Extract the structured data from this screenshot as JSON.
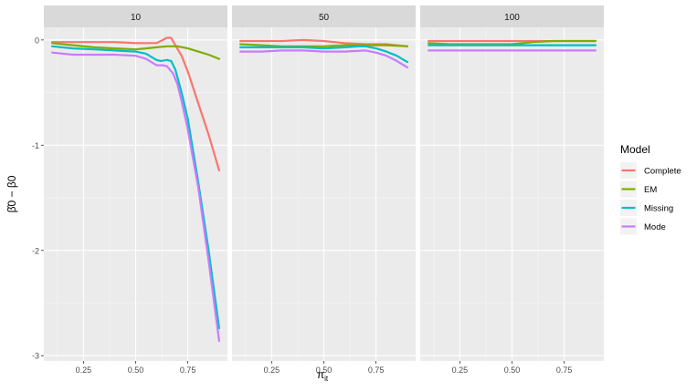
{
  "chart_data": {
    "type": "line",
    "facet_labels": [
      "10",
      "50",
      "100"
    ],
    "xlabel_base": "π",
    "xlabel_sub": "it",
    "ylabel": "β̂0 − β0",
    "x_ticks": [
      0.25,
      0.5,
      0.75
    ],
    "x_tick_labels": [
      "0.25",
      "0.50",
      "0.75"
    ],
    "y_ticks": [
      0,
      -1,
      -2,
      -3
    ],
    "y_tick_labels": [
      "0",
      "-1",
      "-2",
      "-3"
    ],
    "xlim": [
      0.06,
      0.94
    ],
    "ylim": [
      -3.05,
      0.12
    ],
    "grid": true,
    "legend": {
      "title": "Model",
      "position": "right",
      "entries": [
        "Complete",
        "EM",
        "Missing",
        "Mode"
      ]
    },
    "colors": {
      "Complete": "#F8766D",
      "EM": "#7CAE00",
      "Missing": "#00BFC4",
      "Mode": "#C77CFF"
    },
    "facets": [
      {
        "label": "10",
        "series": [
          {
            "name": "Complete",
            "x": [
              0.1,
              0.2,
              0.3,
              0.4,
              0.5,
              0.55,
              0.6,
              0.63,
              0.65,
              0.67,
              0.69,
              0.72,
              0.75,
              0.8,
              0.85,
              0.9
            ],
            "y": [
              -0.02,
              -0.02,
              -0.02,
              -0.02,
              -0.03,
              -0.03,
              -0.03,
              0.0,
              0.02,
              0.02,
              -0.05,
              -0.15,
              -0.3,
              -0.6,
              -0.9,
              -1.24
            ]
          },
          {
            "name": "EM",
            "x": [
              0.1,
              0.2,
              0.3,
              0.4,
              0.5,
              0.55,
              0.6,
              0.65,
              0.7,
              0.75,
              0.8,
              0.85,
              0.9
            ],
            "y": [
              -0.03,
              -0.05,
              -0.07,
              -0.08,
              -0.09,
              -0.08,
              -0.07,
              -0.06,
              -0.06,
              -0.08,
              -0.11,
              -0.14,
              -0.18
            ]
          },
          {
            "name": "Missing",
            "x": [
              0.1,
              0.2,
              0.3,
              0.4,
              0.5,
              0.55,
              0.6,
              0.62,
              0.65,
              0.67,
              0.69,
              0.72,
              0.75,
              0.8,
              0.85,
              0.9
            ],
            "y": [
              -0.06,
              -0.08,
              -0.09,
              -0.1,
              -0.11,
              -0.13,
              -0.19,
              -0.2,
              -0.19,
              -0.2,
              -0.28,
              -0.5,
              -0.75,
              -1.35,
              -2.0,
              -2.74
            ]
          },
          {
            "name": "Mode",
            "x": [
              0.1,
              0.2,
              0.3,
              0.4,
              0.5,
              0.55,
              0.6,
              0.63,
              0.65,
              0.68,
              0.7,
              0.72,
              0.75,
              0.8,
              0.85,
              0.9
            ],
            "y": [
              -0.12,
              -0.14,
              -0.14,
              -0.14,
              -0.15,
              -0.18,
              -0.24,
              -0.24,
              -0.25,
              -0.32,
              -0.42,
              -0.58,
              -0.85,
              -1.4,
              -2.1,
              -2.86
            ]
          }
        ]
      },
      {
        "label": "50",
        "series": [
          {
            "name": "Complete",
            "x": [
              0.1,
              0.2,
              0.3,
              0.4,
              0.5,
              0.6,
              0.7,
              0.8,
              0.9
            ],
            "y": [
              -0.01,
              -0.01,
              -0.01,
              0.0,
              -0.01,
              -0.03,
              -0.04,
              -0.04,
              -0.06
            ]
          },
          {
            "name": "EM",
            "x": [
              0.1,
              0.2,
              0.3,
              0.4,
              0.5,
              0.6,
              0.7,
              0.8,
              0.9
            ],
            "y": [
              -0.04,
              -0.05,
              -0.06,
              -0.06,
              -0.06,
              -0.05,
              -0.05,
              -0.05,
              -0.06
            ]
          },
          {
            "name": "Missing",
            "x": [
              0.1,
              0.2,
              0.3,
              0.4,
              0.5,
              0.6,
              0.67,
              0.7,
              0.75,
              0.8,
              0.85,
              0.9
            ],
            "y": [
              -0.07,
              -0.07,
              -0.07,
              -0.07,
              -0.08,
              -0.07,
              -0.06,
              -0.06,
              -0.08,
              -0.11,
              -0.15,
              -0.21
            ]
          },
          {
            "name": "Mode",
            "x": [
              0.1,
              0.2,
              0.3,
              0.4,
              0.5,
              0.6,
              0.7,
              0.75,
              0.8,
              0.85,
              0.9
            ],
            "y": [
              -0.11,
              -0.11,
              -0.1,
              -0.1,
              -0.11,
              -0.11,
              -0.1,
              -0.12,
              -0.15,
              -0.2,
              -0.26
            ]
          }
        ]
      },
      {
        "label": "100",
        "series": [
          {
            "name": "Complete",
            "x": [
              0.1,
              0.3,
              0.5,
              0.7,
              0.9
            ],
            "y": [
              -0.01,
              -0.01,
              -0.01,
              -0.01,
              -0.01
            ]
          },
          {
            "name": "EM",
            "x": [
              0.1,
              0.2,
              0.3,
              0.4,
              0.5,
              0.6,
              0.7,
              0.8,
              0.9
            ],
            "y": [
              -0.03,
              -0.04,
              -0.04,
              -0.04,
              -0.04,
              -0.02,
              -0.01,
              -0.01,
              -0.01
            ]
          },
          {
            "name": "Missing",
            "x": [
              0.1,
              0.3,
              0.5,
              0.7,
              0.9
            ],
            "y": [
              -0.05,
              -0.05,
              -0.05,
              -0.05,
              -0.05
            ]
          },
          {
            "name": "Mode",
            "x": [
              0.1,
              0.3,
              0.5,
              0.7,
              0.9
            ],
            "y": [
              -0.1,
              -0.1,
              -0.1,
              -0.1,
              -0.1
            ]
          }
        ]
      }
    ]
  }
}
